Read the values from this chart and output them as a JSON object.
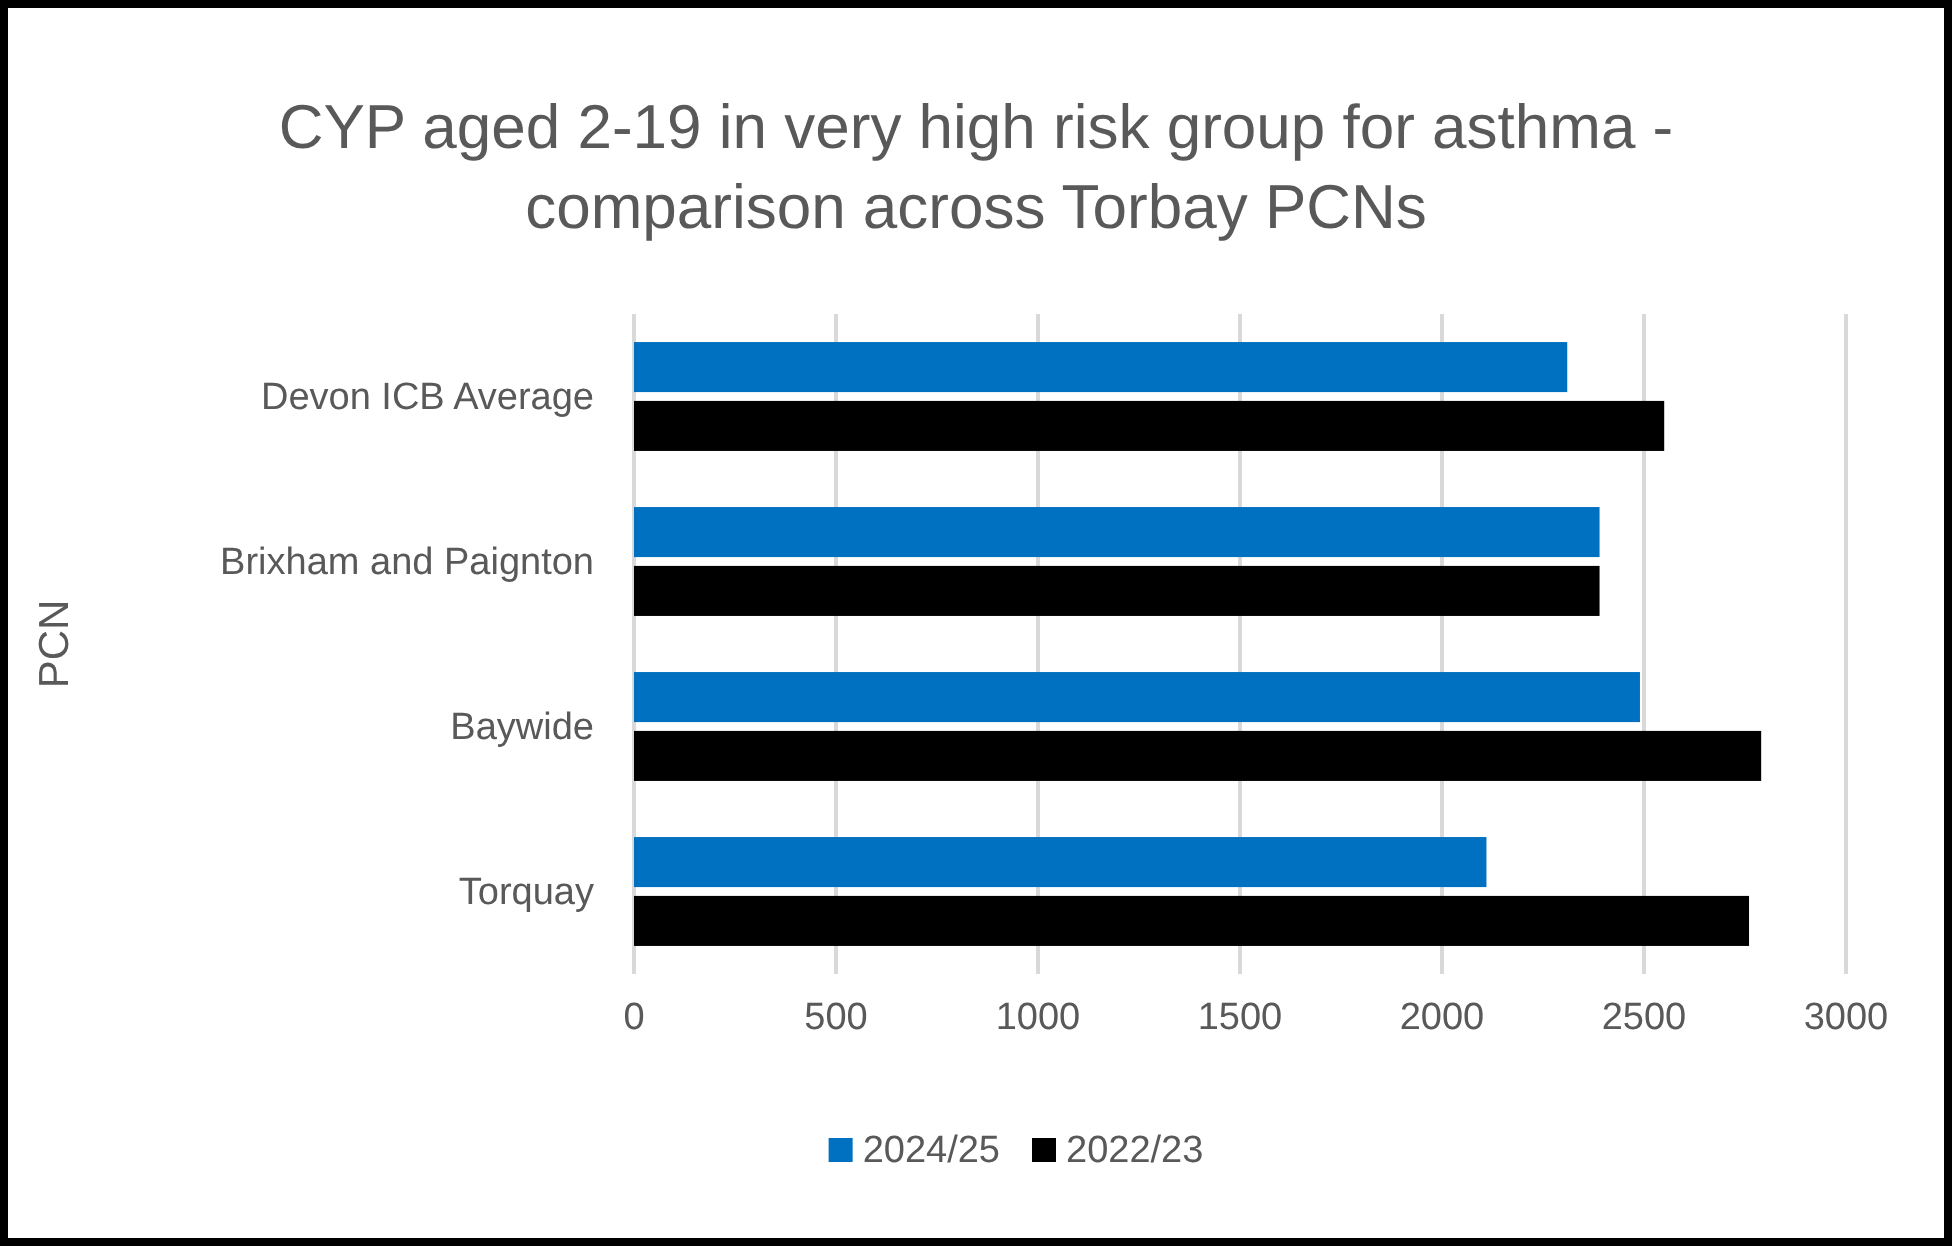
{
  "chart_data": {
    "type": "bar",
    "orientation": "horizontal",
    "title": "CYP aged 2-19 in very high risk group for asthma - comparison across Torbay PCNs",
    "ylabel": "PCN",
    "categories": [
      "Devon ICB Average",
      "Brixham and Paignton",
      "Baywide",
      "Torquay"
    ],
    "series": [
      {
        "name": "2024/25",
        "color": "#0070c0",
        "values": [
          2310,
          2390,
          2490,
          2110
        ]
      },
      {
        "name": "2022/23",
        "color": "#000000",
        "values": [
          2550,
          2390,
          2790,
          2760
        ]
      }
    ],
    "xlim": [
      0,
      3000
    ],
    "xticks": [
      0,
      500,
      1000,
      1500,
      2000,
      2500,
      3000
    ],
    "grid": "x",
    "legend": "bottom"
  }
}
